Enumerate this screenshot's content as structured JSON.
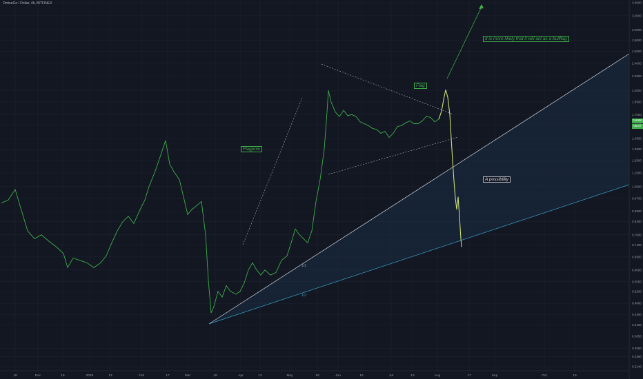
{
  "header": {
    "title": "OmiseGo / Dollar, 4h, BITFINEX"
  },
  "colors": {
    "background": "#131722",
    "grid": "#1e2230",
    "price": "#3fae4b",
    "price_hot": "#c9e07a",
    "fib_white": "#d1d4dc",
    "fib_blue": "#3aa0c8",
    "fill_blue": "#1c3a55",
    "fill_blue2": "#16293d"
  },
  "annotations": {
    "flagpole": "Flagpole",
    "flag": "Flag",
    "bullflag": "It is more likely that it will act as a bullflag",
    "possibility": "A possibility",
    "fib1": "1/1",
    "fib2": "1/2"
  },
  "price_tags": {
    "current": "0.6990",
    "countdown": "05:07"
  },
  "chart_data": {
    "type": "line",
    "title": "OmiseGo / Dollar, 4h, BITFINEX",
    "y_scale": "log",
    "ylim": [
      0.314,
      3.6
    ],
    "y_ticks": [
      "3.6000",
      "3.3000",
      "3.0000",
      "2.8000",
      "2.6000",
      "2.4000",
      "2.2000",
      "2.0000",
      "1.8500",
      "1.7000",
      "1.5900",
      "1.4500",
      "1.3500",
      "1.2500",
      "1.1500",
      "1.0500",
      "0.9700",
      "0.8900",
      "0.8300",
      "0.7600",
      "0.7100",
      "0.6550",
      "0.6000",
      "0.5550",
      "0.5200",
      "0.4800",
      "0.4450",
      "0.4150",
      "0.3850",
      "0.3550",
      "0.3360",
      "0.3140"
    ],
    "x_ticks": [
      "18",
      "Dec",
      "16",
      "2020",
      "13",
      "Feb",
      "17",
      "Mar",
      "16",
      "Apr",
      "13",
      "May",
      "18",
      "Jun",
      "15",
      "Jul",
      "13",
      "Aug",
      "17",
      "Sep",
      "Oct",
      "19"
    ],
    "series": [
      {
        "values_xy": [
          [
            0,
            0.94
          ],
          [
            10,
            0.96
          ],
          [
            20,
            1.03
          ],
          [
            28,
            0.91
          ],
          [
            38,
            0.78
          ],
          [
            48,
            0.74
          ],
          [
            58,
            0.76
          ],
          [
            68,
            0.73
          ],
          [
            80,
            0.7
          ],
          [
            90,
            0.67
          ],
          [
            96,
            0.61
          ],
          [
            104,
            0.65
          ],
          [
            114,
            0.64
          ],
          [
            124,
            0.63
          ],
          [
            134,
            0.61
          ],
          [
            144,
            0.63
          ],
          [
            152,
            0.66
          ],
          [
            160,
            0.72
          ],
          [
            168,
            0.78
          ],
          [
            176,
            0.83
          ],
          [
            184,
            0.86
          ],
          [
            192,
            0.82
          ],
          [
            200,
            0.89
          ],
          [
            208,
            0.96
          ],
          [
            214,
            1.05
          ],
          [
            222,
            1.15
          ],
          [
            230,
            1.28
          ],
          [
            238,
            1.43
          ],
          [
            244,
            1.22
          ],
          [
            250,
            1.16
          ],
          [
            258,
            1.1
          ],
          [
            264,
            0.98
          ],
          [
            270,
            0.87
          ],
          [
            276,
            0.9
          ],
          [
            282,
            0.92
          ],
          [
            290,
            0.95
          ],
          [
            296,
            0.76
          ],
          [
            300,
            0.56
          ],
          [
            304,
            0.45
          ],
          [
            308,
            0.47
          ],
          [
            314,
            0.52
          ],
          [
            320,
            0.5
          ],
          [
            326,
            0.54
          ],
          [
            332,
            0.52
          ],
          [
            340,
            0.51
          ],
          [
            346,
            0.52
          ],
          [
            352,
            0.55
          ],
          [
            358,
            0.6
          ],
          [
            364,
            0.63
          ],
          [
            370,
            0.6
          ],
          [
            376,
            0.58
          ],
          [
            382,
            0.6
          ],
          [
            390,
            0.58
          ],
          [
            398,
            0.59
          ],
          [
            406,
            0.64
          ],
          [
            414,
            0.66
          ],
          [
            420,
            0.72
          ],
          [
            426,
            0.79
          ],
          [
            432,
            0.76
          ],
          [
            438,
            0.74
          ],
          [
            444,
            0.72
          ],
          [
            450,
            0.78
          ],
          [
            456,
            0.95
          ],
          [
            462,
            1.1
          ],
          [
            468,
            1.35
          ],
          [
            472,
            1.73
          ],
          [
            474,
            2.0
          ],
          [
            478,
            1.85
          ],
          [
            484,
            1.73
          ],
          [
            490,
            1.68
          ],
          [
            496,
            1.75
          ],
          [
            502,
            1.69
          ],
          [
            508,
            1.7
          ],
          [
            514,
            1.68
          ],
          [
            520,
            1.62
          ],
          [
            526,
            1.6
          ],
          [
            532,
            1.58
          ],
          [
            538,
            1.55
          ],
          [
            544,
            1.54
          ],
          [
            550,
            1.5
          ],
          [
            556,
            1.52
          ],
          [
            562,
            1.46
          ],
          [
            568,
            1.5
          ],
          [
            574,
            1.57
          ],
          [
            580,
            1.58
          ],
          [
            586,
            1.61
          ],
          [
            592,
            1.63
          ],
          [
            598,
            1.6
          ],
          [
            604,
            1.6
          ],
          [
            610,
            1.63
          ],
          [
            616,
            1.68
          ],
          [
            622,
            1.67
          ],
          [
            628,
            1.62
          ],
          [
            634,
            1.65
          ],
          [
            638,
            1.74
          ],
          [
            641,
            1.88
          ],
          [
            644,
            2.01
          ],
          [
            647,
            1.91
          ],
          [
            650,
            1.7
          ],
          [
            652,
            1.45
          ],
          [
            654,
            1.25
          ],
          [
            656,
            1.09
          ],
          [
            658,
            0.97
          ],
          [
            660,
            0.9
          ],
          [
            662,
            0.98
          ],
          [
            664,
            0.86
          ],
          [
            666,
            0.74
          ],
          [
            667,
            0.7
          ]
        ]
      }
    ]
  }
}
